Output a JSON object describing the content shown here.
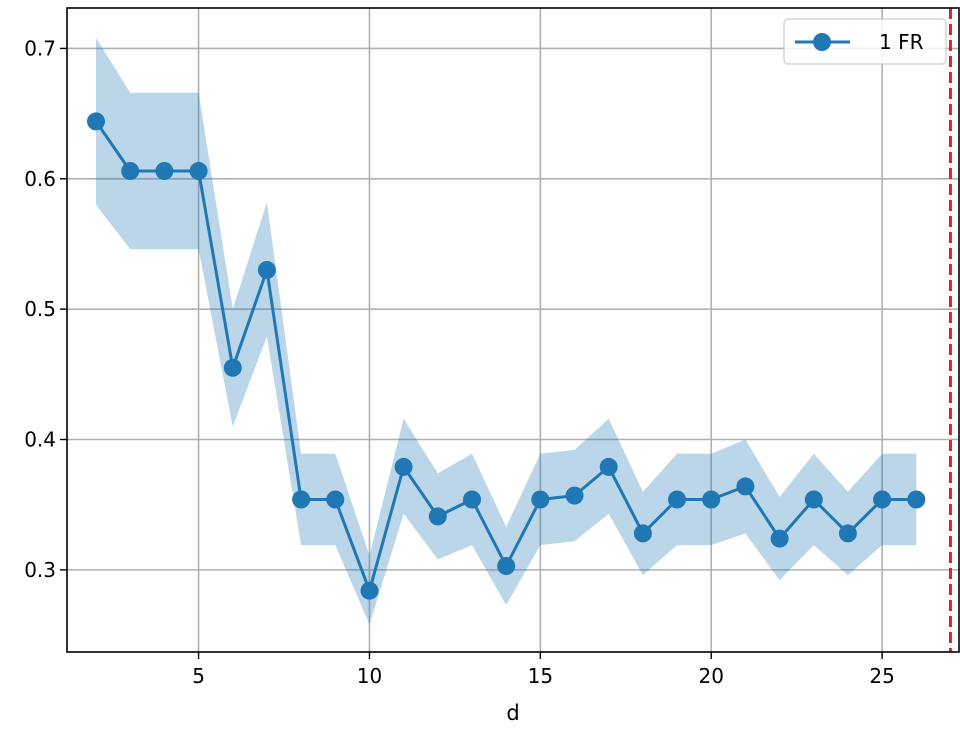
{
  "chart_data": {
    "type": "line",
    "title": "",
    "xlabel": "d",
    "ylabel": "",
    "xlim": [
      1.15,
      27.25
    ],
    "ylim": [
      0.237,
      0.731
    ],
    "xticks": [
      5,
      10,
      15,
      20,
      25
    ],
    "yticks": [
      0.3,
      0.4,
      0.5,
      0.6,
      0.7
    ],
    "ytick_labels": [
      "0.3",
      "0.4",
      "0.5",
      "0.6",
      "0.7"
    ],
    "grid": true,
    "legend_position": "top-right",
    "colors": {
      "series": "#1f77b4",
      "band": "#1f77b4",
      "vline": "#d62728",
      "grid": "#b0b0b0"
    },
    "series": [
      {
        "name": "1 FR",
        "x": [
          2,
          3,
          4,
          5,
          6,
          7,
          8,
          9,
          10,
          11,
          12,
          13,
          14,
          15,
          16,
          17,
          18,
          19,
          20,
          21,
          22,
          23,
          24,
          25,
          26
        ],
        "values": [
          0.644,
          0.606,
          0.606,
          0.606,
          0.455,
          0.53,
          0.354,
          0.354,
          0.284,
          0.379,
          0.341,
          0.354,
          0.303,
          0.354,
          0.357,
          0.379,
          0.328,
          0.354,
          0.354,
          0.364,
          0.324,
          0.354,
          0.328,
          0.354,
          0.354
        ],
        "lower": [
          0.58,
          0.546,
          0.546,
          0.546,
          0.41,
          0.479,
          0.319,
          0.319,
          0.258,
          0.343,
          0.308,
          0.319,
          0.273,
          0.319,
          0.322,
          0.343,
          0.296,
          0.319,
          0.319,
          0.328,
          0.292,
          0.319,
          0.296,
          0.319,
          0.319
        ],
        "upper": [
          0.708,
          0.666,
          0.666,
          0.666,
          0.5,
          0.582,
          0.389,
          0.389,
          0.311,
          0.416,
          0.374,
          0.389,
          0.333,
          0.389,
          0.392,
          0.416,
          0.36,
          0.389,
          0.389,
          0.4,
          0.356,
          0.389,
          0.36,
          0.389,
          0.389
        ]
      }
    ],
    "vline": {
      "x": 27,
      "style": "dashed"
    }
  }
}
